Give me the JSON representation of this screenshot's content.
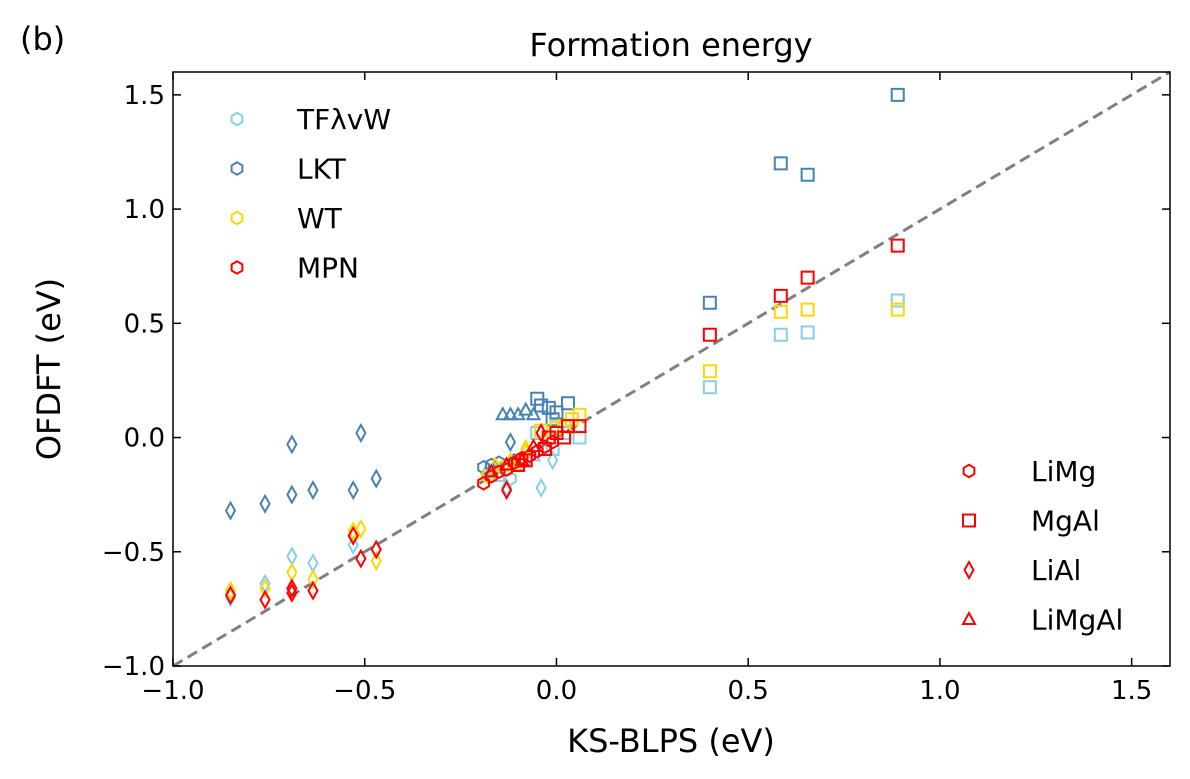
{
  "chart_data": {
    "type": "scatter",
    "panel_label": "(b)",
    "title": "Formation energy",
    "xlabel": "KS-BLPS (eV)",
    "ylabel": "OFDFT (eV)",
    "xlim": [
      -1.0,
      1.6
    ],
    "ylim": [
      -1.0,
      1.6
    ],
    "xticks": [
      -1.0,
      -0.5,
      0.0,
      0.5,
      1.0,
      1.5
    ],
    "yticks": [
      -1.0,
      -0.5,
      0.0,
      0.5,
      1.0,
      1.5
    ],
    "xtick_labels": [
      "−1.0",
      "−0.5",
      "0.0",
      "0.5",
      "1.0",
      "1.5"
    ],
    "ytick_labels": [
      "−1.0",
      "−0.5",
      "0.0",
      "0.5",
      "1.0",
      "1.5"
    ],
    "grid": false,
    "reference_line": {
      "style": "dashed",
      "color": "#808080",
      "from": [
        -1.0,
        -1.0
      ],
      "to": [
        1.6,
        1.6
      ]
    },
    "legend_functional": {
      "placement": "upper-left",
      "entries": [
        {
          "name": "TFλvW",
          "color": "#87ceeb"
        },
        {
          "name": "LKT",
          "color": "#4682b4"
        },
        {
          "name": "WT",
          "color": "#ffd700"
        },
        {
          "name": "MPN",
          "color": "#ff0000"
        }
      ]
    },
    "legend_system": {
      "placement": "lower-right",
      "entries": [
        {
          "name": "LiMg",
          "marker": "hexagon"
        },
        {
          "name": "MgAl",
          "marker": "square"
        },
        {
          "name": "LiAl",
          "marker": "diamond"
        },
        {
          "name": "LiMgAl",
          "marker": "triangle"
        }
      ]
    },
    "series": [
      {
        "name": "TFλvW",
        "color": "#87ceeb",
        "groups": [
          {
            "system": "MgAl",
            "marker": "square",
            "points": [
              [
                0.4,
                0.22
              ],
              [
                0.585,
                0.45
              ],
              [
                0.655,
                0.46
              ],
              [
                0.89,
                0.6
              ],
              [
                0.06,
                0.0
              ],
              [
                0.02,
                0.02
              ],
              [
                0.0,
                0.05
              ],
              [
                -0.01,
                -0.05
              ],
              [
                -0.05,
                0.02
              ]
            ]
          },
          {
            "system": "LiAl",
            "marker": "diamond",
            "points": [
              [
                -0.85,
                -0.7
              ],
              [
                -0.76,
                -0.64
              ],
              [
                -0.69,
                -0.52
              ],
              [
                -0.635,
                -0.55
              ],
              [
                -0.53,
                -0.47
              ],
              [
                -0.04,
                -0.22
              ],
              [
                -0.13,
                -0.22
              ],
              [
                -0.01,
                -0.1
              ]
            ]
          },
          {
            "system": "LiMgAl",
            "marker": "triangle",
            "points": [
              [
                -0.18,
                -0.14
              ],
              [
                -0.15,
                -0.17
              ],
              [
                -0.1,
                -0.12
              ],
              [
                -0.06,
                -0.08
              ]
            ]
          },
          {
            "system": "LiMg",
            "marker": "hexagon",
            "points": [
              [
                -0.17,
                -0.15
              ],
              [
                -0.12,
                -0.18
              ],
              [
                -0.08,
                -0.1
              ]
            ]
          }
        ]
      },
      {
        "name": "LKT",
        "color": "#4682b4",
        "groups": [
          {
            "system": "MgAl",
            "marker": "square",
            "points": [
              [
                0.4,
                0.59
              ],
              [
                0.585,
                1.2
              ],
              [
                0.655,
                1.15
              ],
              [
                0.89,
                1.5
              ],
              [
                -0.05,
                0.17
              ],
              [
                -0.04,
                0.14
              ],
              [
                -0.02,
                0.13
              ],
              [
                0.0,
                0.11
              ],
              [
                0.03,
                0.15
              ],
              [
                -0.01,
                0.08
              ]
            ]
          },
          {
            "system": "LiAl",
            "marker": "diamond",
            "points": [
              [
                -0.85,
                -0.32
              ],
              [
                -0.76,
                -0.29
              ],
              [
                -0.69,
                -0.03
              ],
              [
                -0.69,
                -0.25
              ],
              [
                -0.635,
                -0.23
              ],
              [
                -0.53,
                -0.23
              ],
              [
                -0.51,
                0.02
              ],
              [
                -0.47,
                -0.18
              ],
              [
                -0.12,
                -0.02
              ]
            ]
          },
          {
            "system": "LiMgAl",
            "marker": "triangle",
            "points": [
              [
                -0.14,
                0.1
              ],
              [
                -0.12,
                0.1
              ],
              [
                -0.1,
                0.1
              ],
              [
                -0.08,
                0.12
              ],
              [
                -0.06,
                0.1
              ]
            ]
          },
          {
            "system": "LiMg",
            "marker": "hexagon",
            "points": [
              [
                -0.19,
                -0.13
              ],
              [
                -0.17,
                -0.12
              ],
              [
                -0.15,
                -0.11
              ],
              [
                -0.13,
                -0.12
              ],
              [
                -0.11,
                -0.1
              ]
            ]
          }
        ]
      },
      {
        "name": "WT",
        "color": "#ffd700",
        "groups": [
          {
            "system": "MgAl",
            "marker": "square",
            "points": [
              [
                0.4,
                0.29
              ],
              [
                0.585,
                0.55
              ],
              [
                0.655,
                0.56
              ],
              [
                0.89,
                0.56
              ],
              [
                0.06,
                0.1
              ],
              [
                0.04,
                0.08
              ],
              [
                0.02,
                0.05
              ],
              [
                0.0,
                0.04
              ],
              [
                -0.02,
                0.0
              ],
              [
                -0.04,
                0.03
              ]
            ]
          },
          {
            "system": "LiAl",
            "marker": "diamond",
            "points": [
              [
                -0.85,
                -0.67
              ],
              [
                -0.76,
                -0.66
              ],
              [
                -0.69,
                -0.59
              ],
              [
                -0.635,
                -0.62
              ],
              [
                -0.53,
                -0.41
              ],
              [
                -0.51,
                -0.4
              ],
              [
                -0.47,
                -0.54
              ],
              [
                -0.08,
                -0.05
              ]
            ]
          },
          {
            "system": "LiMgAl",
            "marker": "triangle",
            "points": [
              [
                -0.16,
                -0.12
              ],
              [
                -0.12,
                -0.1
              ],
              [
                -0.08,
                -0.06
              ]
            ]
          },
          {
            "system": "LiMg",
            "marker": "hexagon",
            "points": [
              [
                -0.18,
                -0.17
              ],
              [
                -0.14,
                -0.13
              ],
              [
                -0.1,
                -0.11
              ]
            ]
          }
        ]
      },
      {
        "name": "MPN",
        "color": "#ff0000",
        "groups": [
          {
            "system": "MgAl",
            "marker": "square",
            "points": [
              [
                0.4,
                0.45
              ],
              [
                0.585,
                0.62
              ],
              [
                0.655,
                0.7
              ],
              [
                0.89,
                0.84
              ],
              [
                0.06,
                0.05
              ],
              [
                0.03,
                0.05
              ],
              [
                0.0,
                0.02
              ],
              [
                -0.02,
                0.0
              ],
              [
                -0.03,
                -0.05
              ],
              [
                0.02,
                0.0
              ],
              [
                -0.08,
                -0.1
              ],
              [
                -0.1,
                -0.12
              ]
            ]
          },
          {
            "system": "LiAl",
            "marker": "diamond",
            "points": [
              [
                -0.85,
                -0.69
              ],
              [
                -0.76,
                -0.71
              ],
              [
                -0.69,
                -0.66
              ],
              [
                -0.69,
                -0.68
              ],
              [
                -0.635,
                -0.67
              ],
              [
                -0.53,
                -0.43
              ],
              [
                -0.51,
                -0.53
              ],
              [
                -0.47,
                -0.49
              ],
              [
                -0.13,
                -0.23
              ],
              [
                -0.04,
                0.02
              ]
            ]
          },
          {
            "system": "LiMgAl",
            "marker": "triangle",
            "points": [
              [
                -0.17,
                -0.15
              ],
              [
                -0.13,
                -0.12
              ],
              [
                -0.09,
                -0.1
              ],
              [
                -0.06,
                -0.04
              ]
            ]
          },
          {
            "system": "LiMg",
            "marker": "hexagon",
            "points": [
              [
                -0.19,
                -0.2
              ],
              [
                -0.17,
                -0.17
              ],
              [
                -0.15,
                -0.15
              ],
              [
                -0.13,
                -0.14
              ],
              [
                -0.11,
                -0.11
              ],
              [
                -0.09,
                -0.09
              ],
              [
                -0.07,
                -0.08
              ],
              [
                -0.05,
                -0.06
              ],
              [
                -0.03,
                -0.04
              ],
              [
                -0.01,
                -0.02
              ]
            ]
          }
        ]
      }
    ]
  }
}
